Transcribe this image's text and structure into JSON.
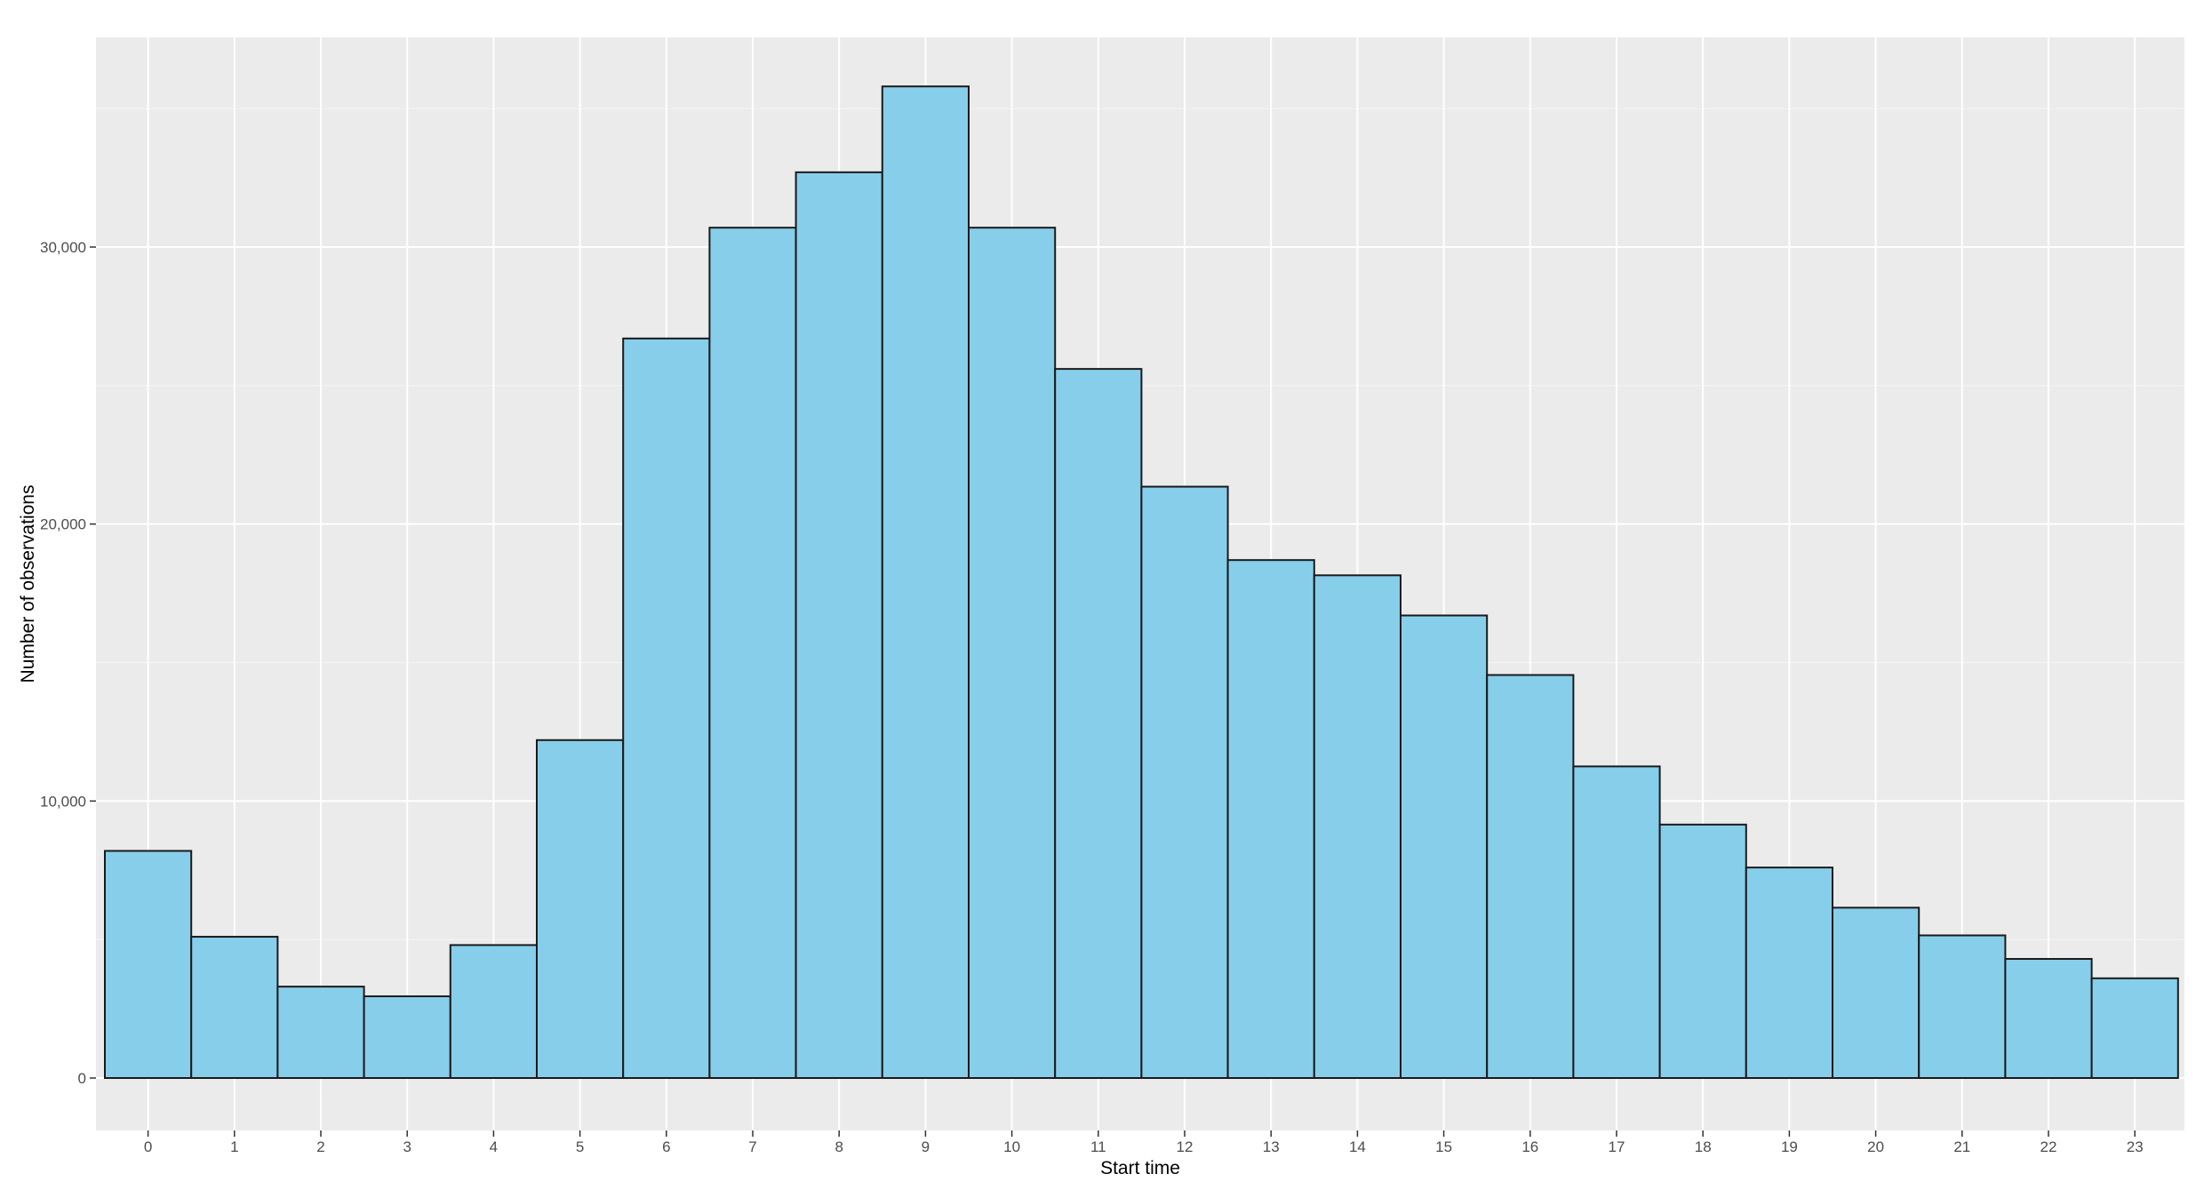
{
  "chart_data": {
    "type": "bar",
    "xlabel": "Start time",
    "ylabel": "Number of observations",
    "categories": [
      "0",
      "1",
      "2",
      "3",
      "4",
      "5",
      "6",
      "7",
      "8",
      "9",
      "10",
      "11",
      "12",
      "13",
      "14",
      "15",
      "16",
      "17",
      "18",
      "19",
      "20",
      "21",
      "22",
      "23"
    ],
    "values": [
      8200,
      5100,
      3300,
      2950,
      4800,
      12200,
      26700,
      30700,
      32700,
      35800,
      30700,
      25600,
      21350,
      18700,
      18150,
      16700,
      14550,
      11250,
      9150,
      7600,
      6150,
      5150,
      4300,
      3600
    ],
    "yticks": [
      0,
      10000,
      20000,
      30000
    ],
    "ytick_labels": [
      "0",
      "10,000",
      "20,000",
      "30,000"
    ],
    "ylim": [
      -1800,
      37600
    ],
    "grid": true,
    "colors": {
      "bar_fill": "#87CEEB",
      "bar_stroke": "#1a1a1a",
      "panel_background": "#EBEBEB",
      "grid_major": "#FFFFFF",
      "grid_minor": "#F5F5F5"
    }
  }
}
